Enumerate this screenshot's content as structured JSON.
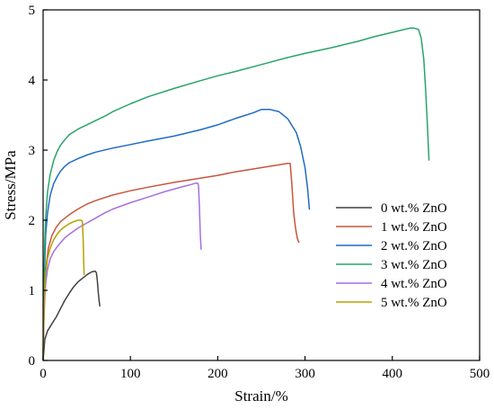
{
  "chart_data": {
    "type": "line",
    "title": "",
    "xlabel": "Strain/%",
    "ylabel": "Stress/MPa",
    "xlim": [
      0,
      500
    ],
    "ylim": [
      0,
      5
    ],
    "xticks": [
      0,
      100,
      200,
      300,
      400,
      500
    ],
    "yticks": [
      0,
      1,
      2,
      3,
      4,
      5
    ],
    "grid": false,
    "legend_position": "bottom-right",
    "series": [
      {
        "name": "0 wt.% ZnO",
        "color": "#404040",
        "x": [
          0,
          2,
          5,
          10,
          15,
          20,
          25,
          30,
          35,
          40,
          45,
          50,
          55,
          58,
          60,
          61,
          62,
          63,
          64,
          65
        ],
        "y": [
          0,
          0.3,
          0.42,
          0.52,
          0.62,
          0.74,
          0.86,
          0.96,
          1.05,
          1.12,
          1.17,
          1.22,
          1.26,
          1.27,
          1.27,
          1.25,
          1.15,
          1.0,
          0.87,
          0.77
        ]
      },
      {
        "name": "1 wt.% ZnO",
        "color": "#c8553d",
        "x": [
          0,
          1,
          2,
          4,
          6,
          10,
          15,
          20,
          30,
          40,
          50,
          60,
          80,
          100,
          120,
          150,
          180,
          200,
          220,
          250,
          270,
          280,
          283,
          285,
          287,
          289,
          291,
          293
        ],
        "y": [
          0,
          0.7,
          1.1,
          1.4,
          1.6,
          1.78,
          1.9,
          1.98,
          2.08,
          2.16,
          2.23,
          2.28,
          2.36,
          2.42,
          2.47,
          2.54,
          2.6,
          2.64,
          2.69,
          2.75,
          2.79,
          2.81,
          2.81,
          2.5,
          2.1,
          1.9,
          1.75,
          1.68
        ]
      },
      {
        "name": "2 wt.% ZnO",
        "color": "#1f6bc4",
        "x": [
          0,
          1,
          2,
          3,
          5,
          8,
          12,
          16,
          20,
          25,
          30,
          40,
          50,
          60,
          80,
          100,
          120,
          150,
          180,
          200,
          220,
          240,
          250,
          260,
          270,
          280,
          290,
          295,
          300,
          303,
          305
        ],
        "y": [
          0,
          0.9,
          1.4,
          1.8,
          2.1,
          2.35,
          2.52,
          2.62,
          2.7,
          2.77,
          2.82,
          2.88,
          2.93,
          2.97,
          3.03,
          3.08,
          3.13,
          3.2,
          3.29,
          3.36,
          3.45,
          3.53,
          3.58,
          3.58,
          3.55,
          3.45,
          3.25,
          3.05,
          2.75,
          2.45,
          2.15
        ]
      },
      {
        "name": "3 wt.% ZnO",
        "color": "#2aa468",
        "x": [
          0,
          1,
          2,
          3,
          5,
          8,
          12,
          16,
          20,
          25,
          30,
          40,
          50,
          60,
          70,
          80,
          100,
          120,
          150,
          180,
          200,
          220,
          250,
          280,
          300,
          330,
          360,
          380,
          400,
          410,
          420,
          425,
          430,
          433,
          436,
          438,
          440,
          442
        ],
        "y": [
          0,
          1.2,
          1.7,
          2.05,
          2.4,
          2.65,
          2.85,
          2.98,
          3.07,
          3.15,
          3.22,
          3.3,
          3.36,
          3.42,
          3.48,
          3.55,
          3.66,
          3.76,
          3.88,
          3.99,
          4.06,
          4.12,
          4.22,
          4.32,
          4.38,
          4.46,
          4.55,
          4.62,
          4.68,
          4.71,
          4.74,
          4.74,
          4.72,
          4.6,
          4.3,
          3.9,
          3.4,
          2.85
        ]
      },
      {
        "name": "4 wt.% ZnO",
        "color": "#a56fe0",
        "x": [
          0,
          1,
          2,
          3,
          5,
          8,
          12,
          16,
          20,
          25,
          30,
          40,
          50,
          60,
          70,
          80,
          100,
          120,
          140,
          160,
          170,
          175,
          177,
          178,
          179,
          180,
          181
        ],
        "y": [
          0,
          0.6,
          0.9,
          1.1,
          1.3,
          1.45,
          1.55,
          1.62,
          1.68,
          1.75,
          1.8,
          1.89,
          1.96,
          2.03,
          2.1,
          2.16,
          2.25,
          2.33,
          2.41,
          2.48,
          2.51,
          2.53,
          2.53,
          2.5,
          2.2,
          1.8,
          1.58
        ]
      },
      {
        "name": "5 wt.% ZnO",
        "color": "#b8a000",
        "x": [
          0,
          1,
          2,
          3,
          5,
          8,
          12,
          16,
          20,
          25,
          30,
          35,
          40,
          43,
          45,
          46,
          46.5,
          47
        ],
        "y": [
          0,
          0.75,
          1.05,
          1.25,
          1.45,
          1.6,
          1.72,
          1.8,
          1.86,
          1.91,
          1.95,
          1.98,
          2.0,
          2.0,
          1.99,
          1.7,
          1.4,
          1.22
        ]
      }
    ]
  }
}
